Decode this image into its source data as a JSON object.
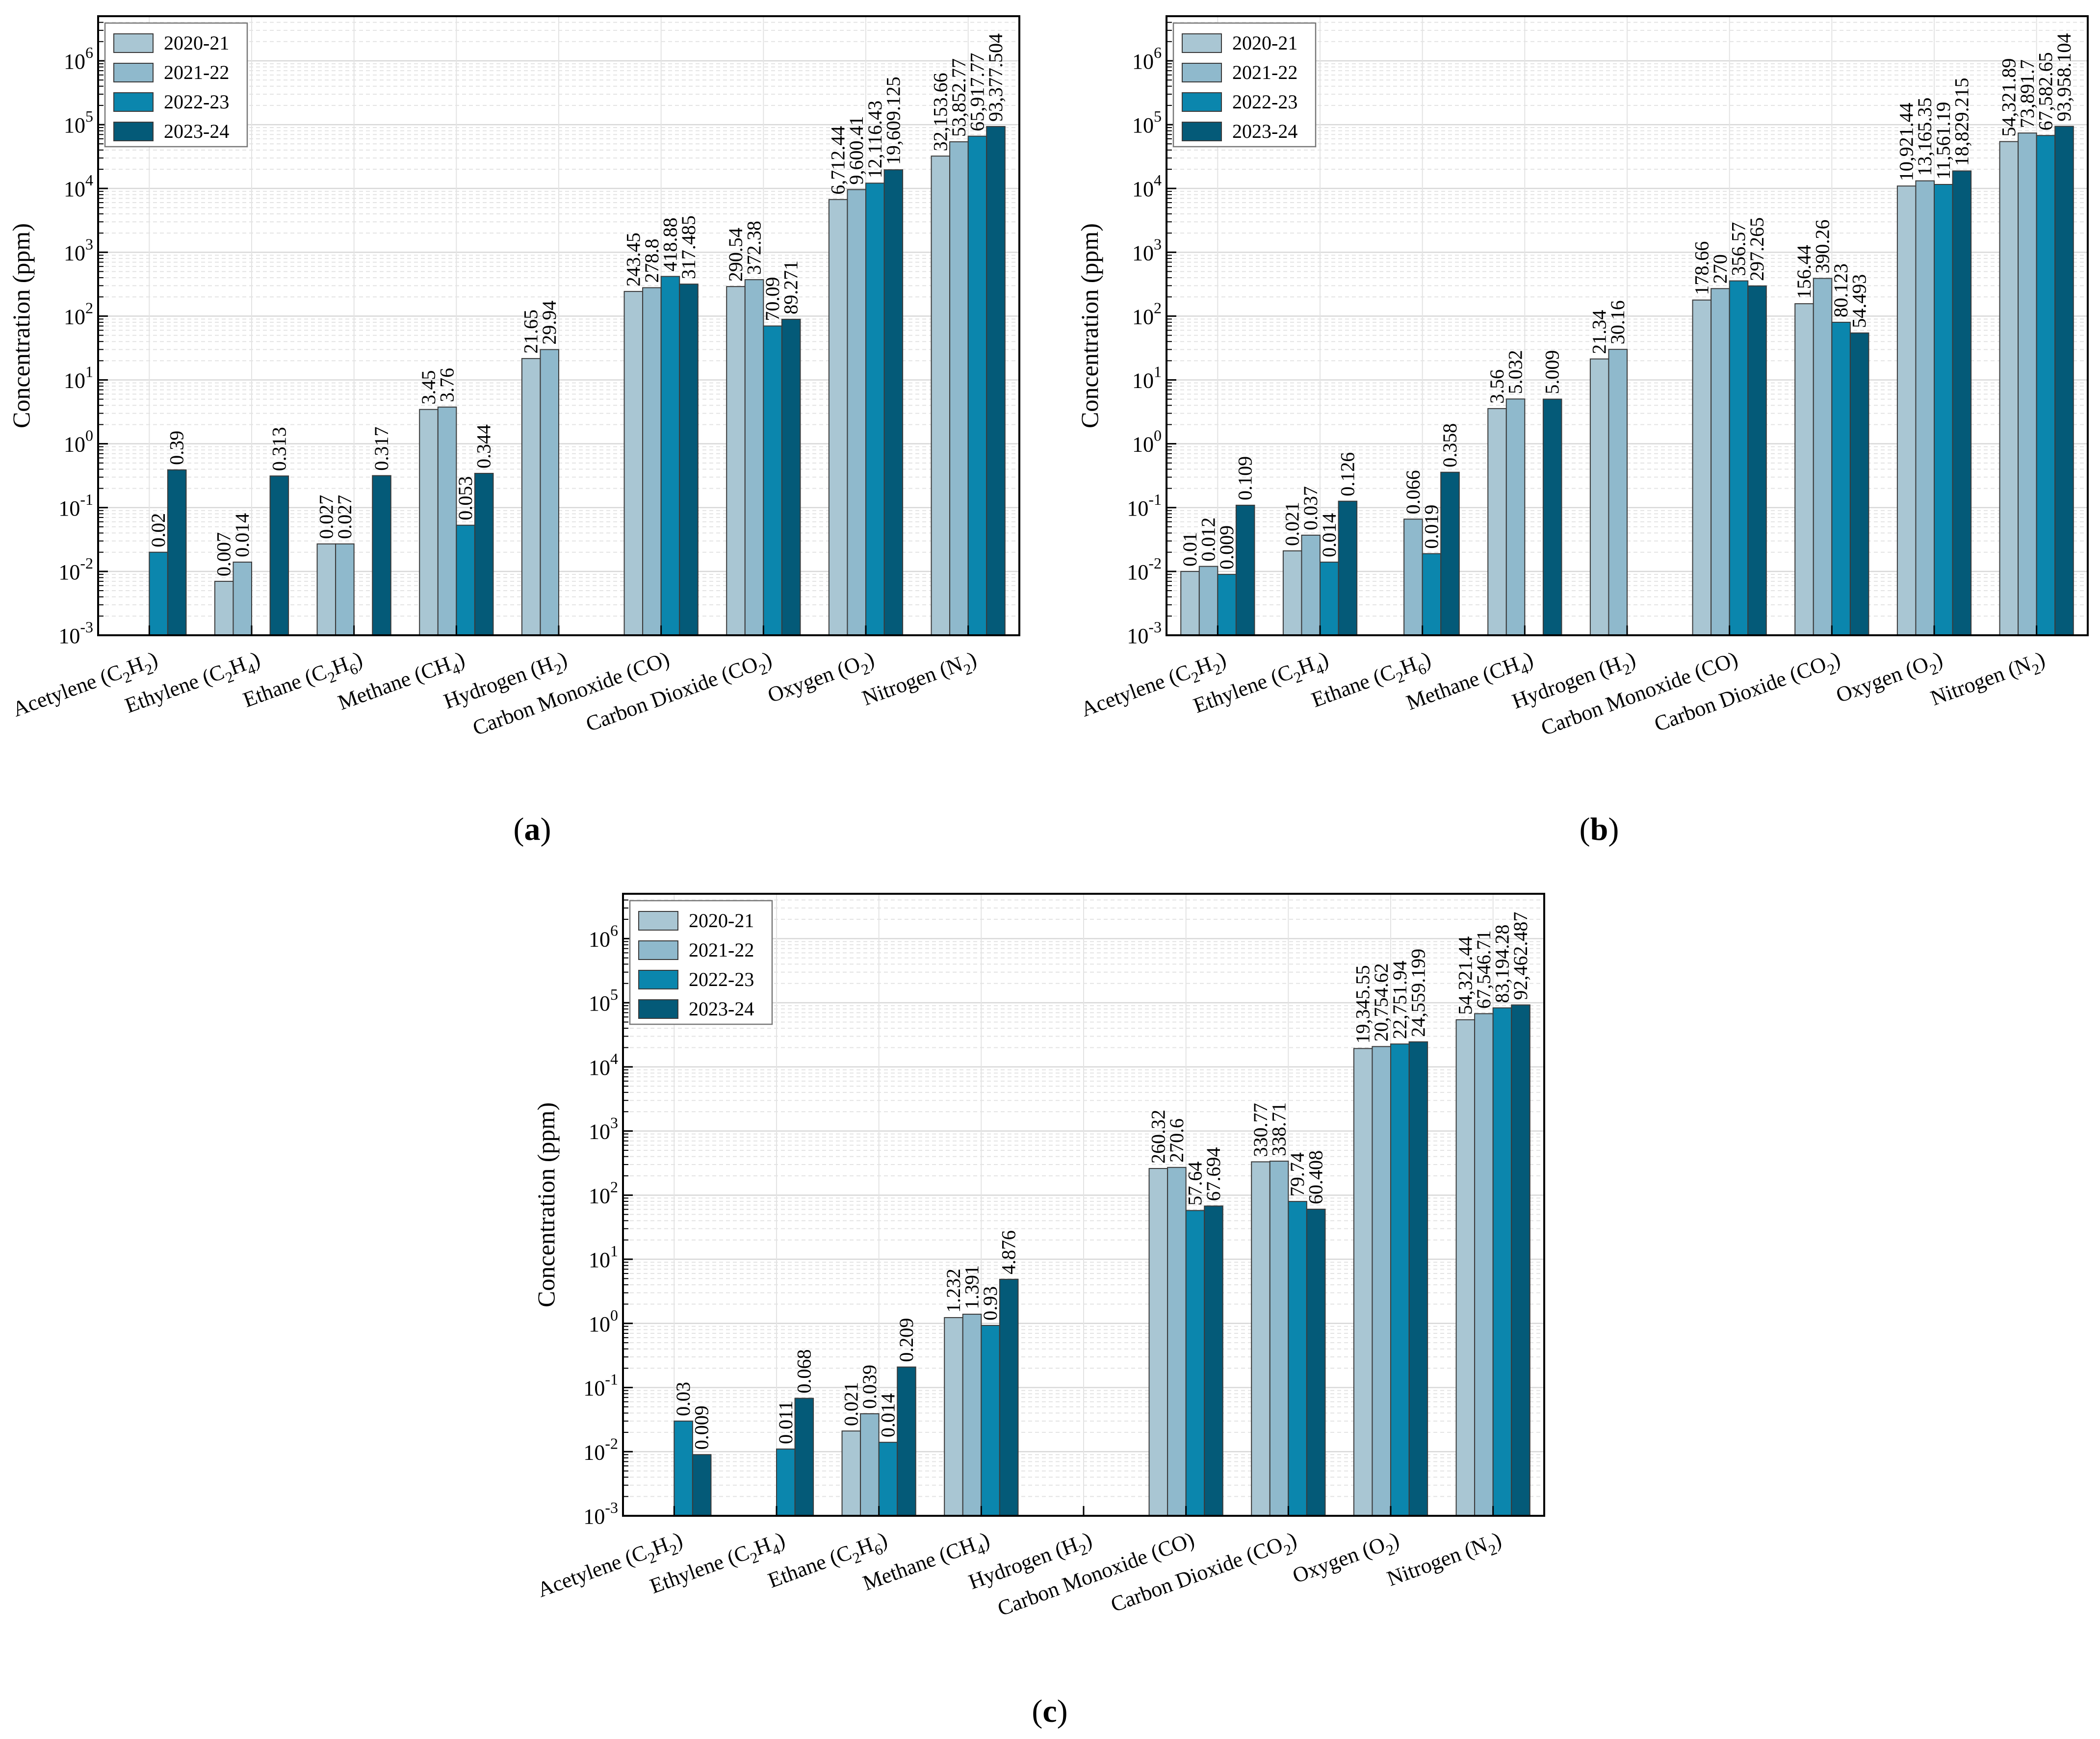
{
  "figure": {
    "series_names": [
      "2020-21",
      "2021-22",
      "2022-23",
      "2023-24"
    ],
    "series_colors": [
      "#a9c6d3",
      "#8fb9cc",
      "#0b86ad",
      "#045a78"
    ],
    "ylabel": "Concentration (ppm)",
    "categories": [
      {
        "name": "Acetylene",
        "formula": [
          [
            "C",
            ""
          ],
          [
            "2",
            "sub"
          ],
          [
            "H",
            ""
          ],
          [
            "2",
            "sub"
          ]
        ]
      },
      {
        "name": "Ethylene",
        "formula": [
          [
            "C",
            ""
          ],
          [
            "2",
            "sub"
          ],
          [
            "H",
            ""
          ],
          [
            "4",
            "sub"
          ]
        ]
      },
      {
        "name": "Ethane",
        "formula": [
          [
            "C",
            ""
          ],
          [
            "2",
            "sub"
          ],
          [
            "H",
            ""
          ],
          [
            "6",
            "sub"
          ]
        ]
      },
      {
        "name": "Methane",
        "formula": [
          [
            "CH",
            ""
          ],
          [
            "4",
            "sub"
          ]
        ]
      },
      {
        "name": "Hydrogen",
        "formula": [
          [
            "H",
            ""
          ],
          [
            "2",
            "sub"
          ]
        ]
      },
      {
        "name": "Carbon Monoxide",
        "formula": [
          [
            "CO",
            ""
          ]
        ]
      },
      {
        "name": "Carbon Dioxide",
        "formula": [
          [
            "CO",
            ""
          ],
          [
            "2",
            "sub"
          ]
        ]
      },
      {
        "name": "Oxygen",
        "formula": [
          [
            "O",
            ""
          ],
          [
            "2",
            "sub"
          ]
        ]
      },
      {
        "name": "Nitrogen",
        "formula": [
          [
            "N",
            ""
          ],
          [
            "2",
            "sub"
          ]
        ]
      }
    ],
    "y_tick_exponents": [
      "-3",
      "-2",
      "-1",
      "0",
      "1",
      "2",
      "3",
      "4",
      "5",
      "6"
    ],
    "y_tick_base": "10"
  },
  "chart_data": [
    {
      "type": "bar",
      "panel_label": "(a)",
      "panel_letter": "a",
      "yscale": "log",
      "ylim": [
        0.001,
        5000000
      ],
      "ylabel": "Concentration (ppm)",
      "categories": [
        "Acetylene (C2H2)",
        "Ethylene (C2H4)",
        "Ethane (C2H6)",
        "Methane (CH4)",
        "Hydrogen (H2)",
        "Carbon Monoxide (CO)",
        "Carbon Dioxide (CO2)",
        "Oxygen (O2)",
        "Nitrogen (N2)"
      ],
      "series": [
        {
          "name": "2020-21",
          "values": [
            null,
            0.007,
            0.027,
            3.45,
            21.65,
            243.45,
            290.54,
            6712.44,
            32153.66
          ],
          "labels": [
            null,
            "0.007",
            "0.027",
            "3.45",
            "21.65",
            "243.45",
            "290.54",
            "6,712.44",
            "32,153.66"
          ]
        },
        {
          "name": "2021-22",
          "values": [
            null,
            0.014,
            0.027,
            3.76,
            29.94,
            278.8,
            372.38,
            9600.41,
            53852.77
          ],
          "labels": [
            null,
            "0.014",
            "0.027",
            "3.76",
            "29.94",
            "278.8",
            "372.38",
            "9,600.41",
            "53,852.77"
          ]
        },
        {
          "name": "2022-23",
          "values": [
            0.02,
            null,
            null,
            0.053,
            null,
            418.88,
            70.09,
            12116.43,
            65917.77
          ],
          "labels": [
            "0.02",
            null,
            null,
            "0.053",
            null,
            "418.88",
            "70.09",
            "12,116.43",
            "65,917.77"
          ]
        },
        {
          "name": "2023-24",
          "values": [
            0.39,
            0.313,
            0.317,
            0.344,
            null,
            317.485,
            89.271,
            19609.125,
            93377.504
          ],
          "labels": [
            "0.39",
            "0.313",
            "0.317",
            "0.344",
            null,
            "317.485",
            "89.271",
            "19,609.125",
            "93,377.504"
          ]
        }
      ],
      "legend": "top-left",
      "grid": true
    },
    {
      "type": "bar",
      "panel_label": "(b)",
      "panel_letter": "b",
      "yscale": "log",
      "ylim": [
        0.001,
        5000000
      ],
      "ylabel": "Concentration (ppm)",
      "categories": [
        "Acetylene (C2H2)",
        "Ethylene (C2H4)",
        "Ethane (C2H6)",
        "Methane (CH4)",
        "Hydrogen (H2)",
        "Carbon Monoxide (CO)",
        "Carbon Dioxide (CO2)",
        "Oxygen (O2)",
        "Nitrogen (N2)"
      ],
      "series": [
        {
          "name": "2020-21",
          "values": [
            0.01,
            0.021,
            null,
            3.56,
            21.34,
            178.66,
            156.44,
            10921.44,
            54321.89
          ],
          "labels": [
            "0.01",
            "0.021",
            null,
            "3.56",
            "21.34",
            "178.66",
            "156.44",
            "10,921.44",
            "54,321.89"
          ]
        },
        {
          "name": "2021-22",
          "values": [
            0.012,
            0.037,
            0.066,
            5.032,
            30.16,
            270,
            390.26,
            13165.35,
            73891.7
          ],
          "labels": [
            "0.012",
            "0.037",
            "0.066",
            "5.032",
            "30.16",
            "270",
            "390.26",
            "13,165.35",
            "73,891.7"
          ]
        },
        {
          "name": "2022-23",
          "values": [
            0.009,
            0.014,
            0.019,
            null,
            null,
            356.57,
            80.123,
            11561.19,
            67582.65
          ],
          "labels": [
            "0.009",
            "0.014",
            "0.019",
            null,
            null,
            "356.57",
            "80.123",
            "11,561.19",
            "67,582.65"
          ]
        },
        {
          "name": "2023-24",
          "values": [
            0.109,
            0.126,
            0.358,
            5.009,
            null,
            297.265,
            54.493,
            18829.215,
            93958.104
          ],
          "labels": [
            "0.109",
            "0.126",
            "0.358",
            "5.009",
            null,
            "297.265",
            "54.493",
            "18,829.215",
            "93,958.104"
          ]
        }
      ],
      "legend": "top-left",
      "grid": true
    },
    {
      "type": "bar",
      "panel_label": "(c)",
      "panel_letter": "c",
      "yscale": "log",
      "ylim": [
        0.001,
        5000000
      ],
      "ylabel": "Concentration (ppm)",
      "categories": [
        "Acetylene (C2H2)",
        "Ethylene (C2H4)",
        "Ethane (C2H6)",
        "Methane (CH4)",
        "Hydrogen (H2)",
        "Carbon Monoxide (CO)",
        "Carbon Dioxide (CO2)",
        "Oxygen (O2)",
        "Nitrogen (N2)"
      ],
      "series": [
        {
          "name": "2020-21",
          "values": [
            null,
            null,
            0.021,
            1.232,
            null,
            260.32,
            330.77,
            19345.55,
            54321.44
          ],
          "labels": [
            null,
            null,
            "0.021",
            "1.232",
            null,
            "260.32",
            "330.77",
            "19,345.55",
            "54,321.44"
          ]
        },
        {
          "name": "2021-22",
          "values": [
            null,
            null,
            0.039,
            1.391,
            null,
            270.6,
            338.71,
            20754.62,
            67546.71
          ],
          "labels": [
            null,
            null,
            "0.039",
            "1.391",
            null,
            "270.6",
            "338.71",
            "20,754.62",
            "67,546.71"
          ]
        },
        {
          "name": "2022-23",
          "values": [
            0.03,
            0.011,
            0.014,
            0.93,
            null,
            57.64,
            79.74,
            22751.94,
            83194.28
          ],
          "labels": [
            "0.03",
            "0.011",
            "0.014",
            "0.93",
            null,
            "57.64",
            "79.74",
            "22,751.94",
            "83,194.28"
          ]
        },
        {
          "name": "2023-24",
          "values": [
            0.009,
            0.068,
            0.209,
            4.876,
            null,
            67.694,
            60.408,
            24559.199,
            92462.487
          ],
          "labels": [
            "0.009",
            "0.068",
            "0.209",
            "4.876",
            null,
            "67.694",
            "60.408",
            "24,559.199",
            "92,462.487"
          ]
        }
      ],
      "legend": "top-left",
      "grid": true
    }
  ]
}
